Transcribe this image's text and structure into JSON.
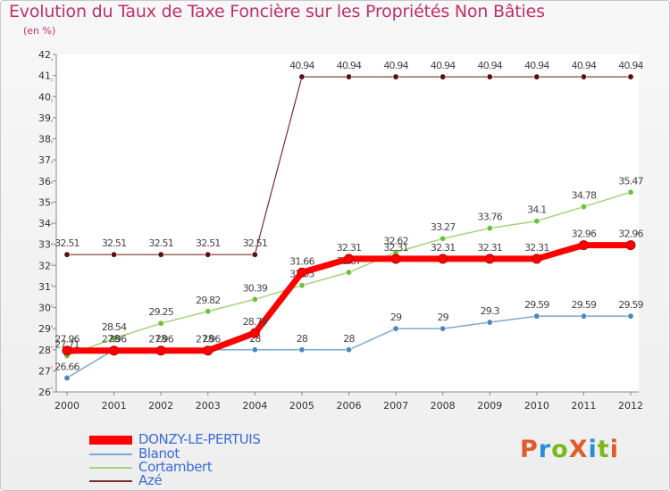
{
  "title": "Evolution du Taux de Taxe Foncière sur les Propriétés Non Bâties",
  "unit_label": "(en %)",
  "brand": {
    "text": "ProXiti",
    "colors": [
      "#e05a2a",
      "#2a8fd8",
      "#7ab81e",
      "#e05a2a",
      "#2a8fd8",
      "#7ab81e",
      "#e05a2a"
    ]
  },
  "chart_data": {
    "type": "line",
    "title": "Evolution du Taux de Taxe Foncière sur les Propriétés Non Bâties",
    "ylabel": "(en %)",
    "xlabel": "",
    "ylim": [
      26,
      42
    ],
    "yticks": [
      26,
      27,
      28,
      29,
      30,
      31,
      32,
      33,
      34,
      35,
      36,
      37,
      38,
      39,
      40,
      41,
      42
    ],
    "categories": [
      "2000",
      "2001",
      "2002",
      "2003",
      "2004",
      "2005",
      "2006",
      "2007",
      "2008",
      "2009",
      "2010",
      "2011",
      "2012"
    ],
    "grid": false,
    "legend": "bottom-left",
    "series": [
      {
        "name": "Azé",
        "color": "#7a2c2c",
        "dot": "#5a1010",
        "width": 1.2,
        "values": [
          32.51,
          32.51,
          32.51,
          32.51,
          32.51,
          40.94,
          40.94,
          40.94,
          40.94,
          40.94,
          40.94,
          40.94,
          40.94
        ],
        "labels": [
          "32.51",
          "32.51",
          "32.51",
          "32.51",
          "32.51",
          "40.94",
          "40.94",
          "40.94",
          "40.94",
          "40.94",
          "40.94",
          "40.94",
          "40.94"
        ]
      },
      {
        "name": "Cortambert",
        "color": "#a4d47a",
        "dot": "#6cc03a",
        "width": 1.5,
        "values": [
          27.71,
          28.54,
          29.25,
          29.82,
          30.39,
          31.05,
          31.67,
          32.62,
          33.27,
          33.76,
          34.1,
          34.78,
          35.47
        ],
        "labels": [
          "27.71",
          "28.54",
          "29.25",
          "29.82",
          "30.39",
          "31.05",
          "31.67",
          "32.62",
          "33.27",
          "33.76",
          "34.1",
          "34.78",
          "35.47"
        ]
      },
      {
        "name": "Blanot",
        "color": "#7aa8d0",
        "dot": "#4a86c0",
        "width": 1.5,
        "values": [
          26.66,
          28,
          28,
          28,
          28,
          28,
          28,
          29,
          29,
          29.3,
          29.59,
          29.59,
          29.59
        ],
        "labels": [
          "26.66",
          "28",
          "28",
          "28",
          "28",
          "28",
          "28",
          "29",
          "29",
          "29.3",
          "29.59",
          "29.59",
          "29.59"
        ]
      },
      {
        "name": "DONZY-LE-PERTUIS",
        "color": "#ff0000",
        "dot": "#ff0000",
        "width": 7,
        "values": [
          27.96,
          27.96,
          27.96,
          27.96,
          28.79,
          31.66,
          32.31,
          32.31,
          32.31,
          32.31,
          32.31,
          32.96,
          32.96
        ],
        "labels": [
          "27.96",
          "27.96",
          "27.96",
          "27.96",
          "28.79",
          "31.66",
          "32.31",
          "32.31",
          "32.31",
          "32.31",
          "32.31",
          "32.96",
          "32.96"
        ]
      }
    ]
  },
  "legend": [
    {
      "label": "DONZY-LE-PERTUIS",
      "color": "#ff0000",
      "text_color": "#3a6cd6"
    },
    {
      "label": "Blanot",
      "color": "#7aa8d0",
      "text_color": "#3a6cd6"
    },
    {
      "label": "Cortambert",
      "color": "#a4d47a",
      "text_color": "#3a6cd6"
    },
    {
      "label": "Azé",
      "color": "#7a2c2c",
      "text_color": "#3a6cd6"
    }
  ]
}
